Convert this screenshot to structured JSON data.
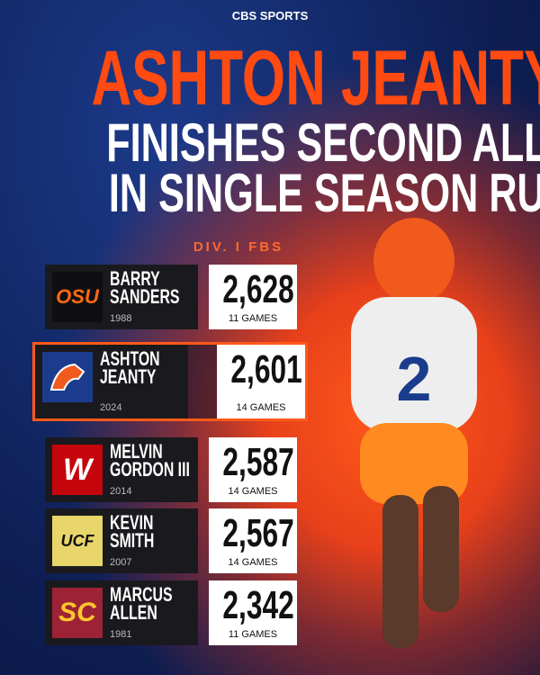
{
  "brand": "CBS SPORTS",
  "headline": "ASHTON JEANTY",
  "subtitle": [
    "FINISHES SECOND ALL-TIME",
    "IN SINGLE SEASON RUSHING"
  ],
  "division": "DIV. I FBS",
  "rows": [
    {
      "name": [
        "BARRY",
        "SANDERS"
      ],
      "year": "1988",
      "yards": "2,628",
      "games": "11 GAMES",
      "logo": "OSU"
    },
    {
      "name": [
        "ASHTON",
        "JEANTY"
      ],
      "year": "2024",
      "yards": "2,601",
      "games": "14 GAMES",
      "highlight": true
    },
    {
      "name": [
        "MELVIN",
        "GORDON III"
      ],
      "year": "2014",
      "yards": "2,587",
      "games": "14 GAMES",
      "logo": "W"
    },
    {
      "name": [
        "KEVIN",
        "SMITH"
      ],
      "year": "2007",
      "yards": "2,567",
      "games": "14 GAMES",
      "logo": "UCF"
    },
    {
      "name": [
        "MARCUS",
        "ALLEN"
      ],
      "year": "1981",
      "yards": "2,342",
      "games": "11 GAMES",
      "logo": "SC"
    }
  ]
}
